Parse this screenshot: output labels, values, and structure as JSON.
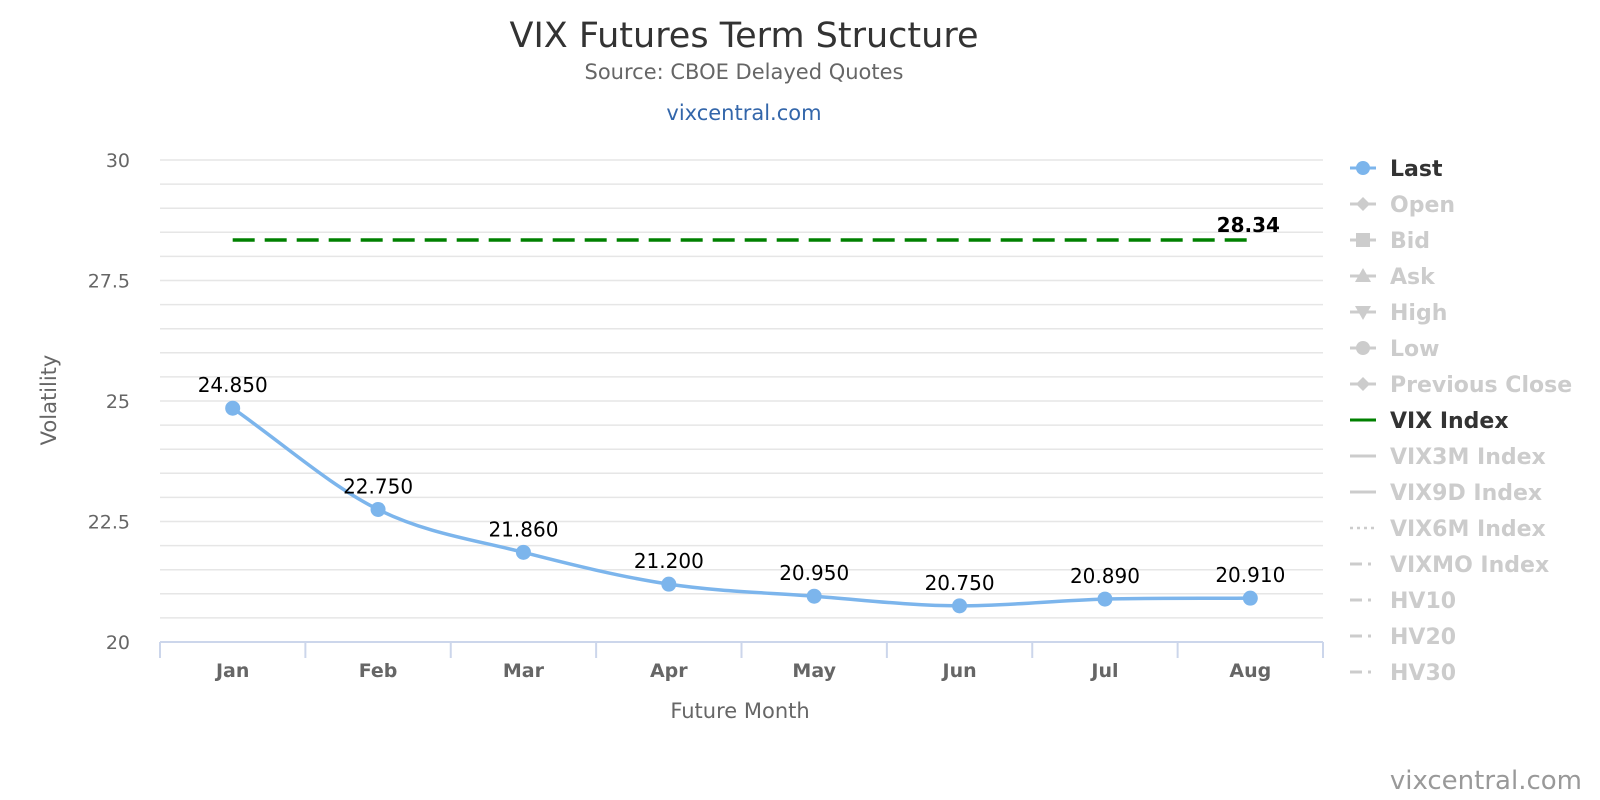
{
  "chart_data": {
    "type": "line",
    "title": "VIX Futures Term Structure",
    "subtitle": "Source: CBOE Delayed Quotes",
    "link_text": "vixcentral.com",
    "credits": "vixcentral.com",
    "xlabel": "Future Month",
    "ylabel": "Volatility",
    "categories": [
      "Jan",
      "Feb",
      "Mar",
      "Apr",
      "May",
      "Jun",
      "Jul",
      "Aug"
    ],
    "ylim": [
      20,
      30
    ],
    "yticks": [
      20,
      22.5,
      25,
      27.5,
      30
    ],
    "ytick_labels": [
      "20",
      "22.5",
      "25",
      "27.5",
      "30"
    ],
    "grid": true,
    "legend_position": "right",
    "series": [
      {
        "name": "Last",
        "values": [
          24.85,
          22.75,
          21.86,
          21.2,
          20.95,
          20.75,
          20.89,
          20.91
        ],
        "labels": [
          "24.850",
          "22.750",
          "21.860",
          "21.200",
          "20.950",
          "20.750",
          "20.890",
          "20.910"
        ],
        "color": "#7cb5ec",
        "style": "spline-with-markers"
      },
      {
        "name": "VIX Index",
        "values": [
          28.34,
          28.34,
          28.34,
          28.34,
          28.34,
          28.34,
          28.34,
          28.34
        ],
        "end_label": "28.34",
        "color": "#008000",
        "style": "dashed"
      }
    ],
    "legend": [
      {
        "name": "Last",
        "active": true,
        "symbol": "circle-line",
        "color": "#7cb5ec"
      },
      {
        "name": "Open",
        "active": false,
        "symbol": "diamond-line",
        "color": "#cccccc"
      },
      {
        "name": "Bid",
        "active": false,
        "symbol": "square-line",
        "color": "#cccccc"
      },
      {
        "name": "Ask",
        "active": false,
        "symbol": "triangle-line",
        "color": "#cccccc"
      },
      {
        "name": "High",
        "active": false,
        "symbol": "triangle-down-line",
        "color": "#cccccc"
      },
      {
        "name": "Low",
        "active": false,
        "symbol": "circle-line",
        "color": "#cccccc"
      },
      {
        "name": "Previous Close",
        "active": false,
        "symbol": "diamond-line",
        "color": "#cccccc"
      },
      {
        "name": "VIX Index",
        "active": true,
        "symbol": "line",
        "color": "#008000"
      },
      {
        "name": "VIX3M Index",
        "active": false,
        "symbol": "line",
        "color": "#cccccc"
      },
      {
        "name": "VIX9D Index",
        "active": false,
        "symbol": "line",
        "color": "#cccccc"
      },
      {
        "name": "VIX6M Index",
        "active": false,
        "symbol": "dotted",
        "color": "#cccccc"
      },
      {
        "name": "VIXMO Index",
        "active": false,
        "symbol": "dashdot",
        "color": "#cccccc"
      },
      {
        "name": "HV10",
        "active": false,
        "symbol": "dashdot",
        "color": "#cccccc"
      },
      {
        "name": "HV20",
        "active": false,
        "symbol": "dashdot",
        "color": "#cccccc"
      },
      {
        "name": "HV30",
        "active": false,
        "symbol": "dashdot",
        "color": "#cccccc"
      }
    ],
    "colors": {
      "title": "#333333",
      "subtitle": "#666666",
      "link": "#3366aa",
      "grid": "#e6e6e6",
      "axis": "#ccd6eb",
      "legend_active_text": "#333333",
      "legend_inactive_text": "#cccccc",
      "credits": "#999999"
    }
  }
}
